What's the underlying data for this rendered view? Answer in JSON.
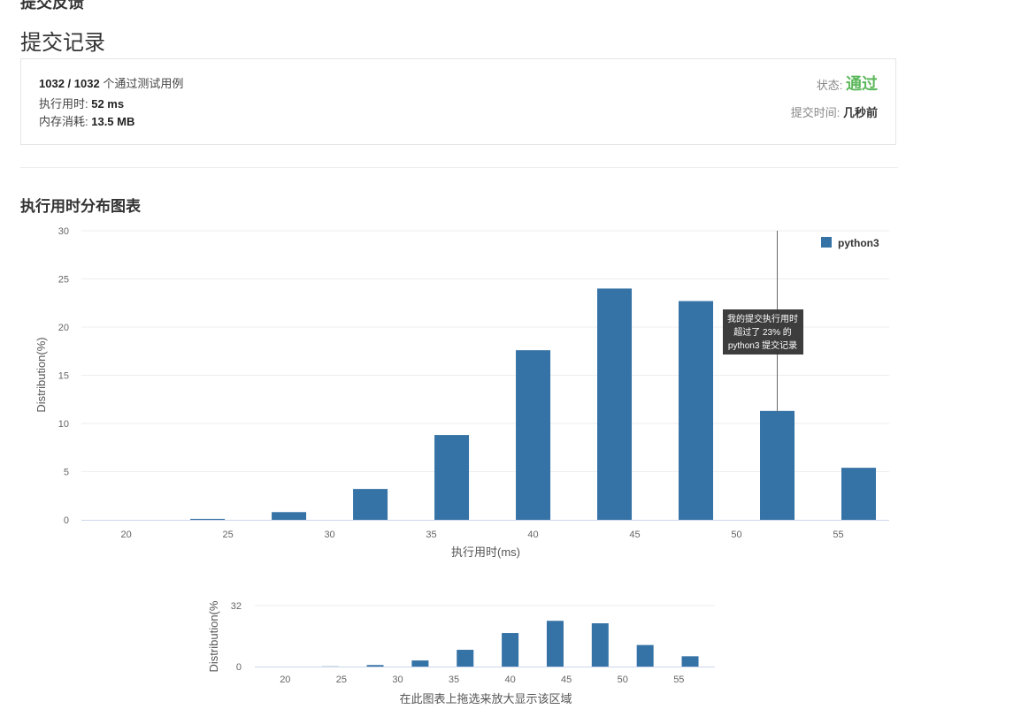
{
  "header": {
    "cut_title": "提交反馈",
    "page_title": "提交记录"
  },
  "result": {
    "passed": "1032",
    "total": "1032",
    "passed_sep": " / ",
    "cases_label": "个通过测试用例",
    "runtime_label": "执行用时: ",
    "runtime_value": "52 ms",
    "memory_label": "内存消耗: ",
    "memory_value": "13.5 MB",
    "status_label": "状态: ",
    "status_value": "通过",
    "submit_time_label": "提交时间: ",
    "submit_time_value": "几秒前"
  },
  "section": {
    "title": "执行用时分布图表"
  },
  "tooltip": {
    "line1": "我的提交执行用时",
    "line2": "超过了 23% 的",
    "line3": "python3 提交记录"
  },
  "navigator": {
    "hint": "在此图表上拖选来放大显示该区域"
  },
  "colors": {
    "bar": "#3572a5",
    "status_ok": "#5cb85c",
    "tooltip_bg": "#333333"
  },
  "chart_data": [
    {
      "type": "bar",
      "x": [
        20,
        24,
        28,
        32,
        36,
        40,
        44,
        48,
        52,
        56
      ],
      "series": [
        {
          "name": "python3",
          "values": [
            0,
            0.1,
            0.8,
            3.2,
            8.8,
            17.6,
            24.0,
            22.7,
            11.3,
            5.4
          ]
        }
      ],
      "xlabel": "执行用时(ms)",
      "ylabel": "Distribution(%)",
      "xlim": [
        17.8,
        57.5
      ],
      "ylim": [
        0,
        30
      ],
      "xticks": [
        20,
        25,
        30,
        35,
        40,
        45,
        50,
        55
      ],
      "yticks": [
        0,
        5,
        10,
        15,
        20,
        25,
        30
      ],
      "marker_x": 52,
      "grid": true,
      "legend": "top-right"
    },
    {
      "type": "bar",
      "x": [
        20,
        24,
        28,
        32,
        36,
        40,
        44,
        48,
        52,
        56
      ],
      "series": [
        {
          "name": "python3",
          "values": [
            0,
            0.1,
            0.8,
            3.2,
            8.8,
            17.6,
            24.0,
            22.7,
            11.3,
            5.4
          ]
        }
      ],
      "ylabel": "Distribution(%",
      "xlim": [
        17.3,
        58.2
      ],
      "ylim": [
        0,
        32
      ],
      "xticks": [
        20,
        25,
        30,
        35,
        40,
        45,
        50,
        55
      ],
      "yticks": [
        0,
        32
      ],
      "grid": true
    }
  ]
}
